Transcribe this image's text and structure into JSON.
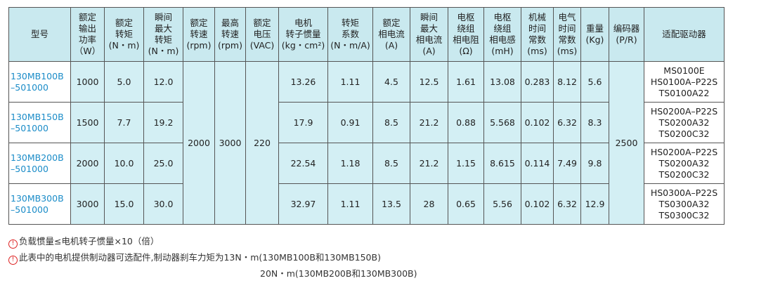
{
  "table": {
    "headers": [
      [
        "型号"
      ],
      [
        "额定",
        "输出",
        "功率",
        "（W）"
      ],
      [
        "额定",
        "转矩",
        "(N・m)"
      ],
      [
        "瞬间",
        "最大",
        "转矩",
        "(N・m)"
      ],
      [
        "额定",
        "转速",
        "(rpm)"
      ],
      [
        "最高",
        "转速",
        "(rpm)"
      ],
      [
        "额定",
        "电压",
        "(VAC)"
      ],
      [
        "电机",
        "转子惯量",
        "(kg・cm²)"
      ],
      [
        "转矩",
        "系数",
        "(N・m/A)"
      ],
      [
        "额定",
        "相电流",
        "(A)"
      ],
      [
        "瞬间",
        "最大",
        "相电流",
        "(A)"
      ],
      [
        "电枢",
        "绕组",
        "相电阻",
        "(Ω)"
      ],
      [
        "电枢",
        "绕组",
        "相电感",
        "(mH)"
      ],
      [
        "机械",
        "时间",
        "常数",
        "(ms)"
      ],
      [
        "电气",
        "时间",
        "常数",
        "(ms)"
      ],
      [
        "重量",
        "(Kg)"
      ],
      [
        "编码器",
        "(P/R)"
      ],
      [
        "适配驱动器"
      ]
    ],
    "rows": [
      [
        [
          "130MB100B",
          "–501000"
        ],
        "1000",
        "5.0",
        "12.0",
        "2000",
        "3000",
        "220",
        "13.26",
        "1.11",
        "4.5",
        "12.5",
        "1.61",
        "13.08",
        "0.283",
        "8.12",
        "5.6",
        "2500",
        [
          "MS0100E",
          "HS0100A–P22S",
          "TS0100A22"
        ]
      ],
      [
        [
          "130MB150B",
          "–501000"
        ],
        "1500",
        "7.7",
        "19.2",
        "17.9",
        "0.91",
        "8.5",
        "21.2",
        "0.88",
        "5.568",
        "0.102",
        "6.32",
        "8.3",
        [
          "HS0200A–P22S",
          "TS0200A32",
          "TS0200C32"
        ]
      ],
      [
        [
          "130MB200B",
          "–501000"
        ],
        "2000",
        "10.0",
        "25.0",
        "22.54",
        "1.18",
        "8.5",
        "21.2",
        "1.15",
        "8.615",
        "0.114",
        "7.49",
        "9.8",
        [
          "HS0200A–P22S",
          "TS0200A32",
          "TS0200C32"
        ]
      ],
      [
        [
          "130MB300B",
          "–501000"
        ],
        "3000",
        "15.0",
        "30.0",
        "32.97",
        "1.11",
        "13.5",
        "28",
        "0.65",
        "5.56",
        "0.102",
        "6.32",
        "12.9",
        [
          "HS0300A–P22S",
          "TS0300A32",
          "TS0300C32"
        ]
      ]
    ]
  },
  "notes": [
    "负载惯量≤电机转子惯量×10（倍）",
    "此表中的电机提供制动器可选配件,制动器刹车力矩为13N・m(130MB100B和130MB150B)",
    "20N・m(130MB200B和130MB300B)"
  ]
}
